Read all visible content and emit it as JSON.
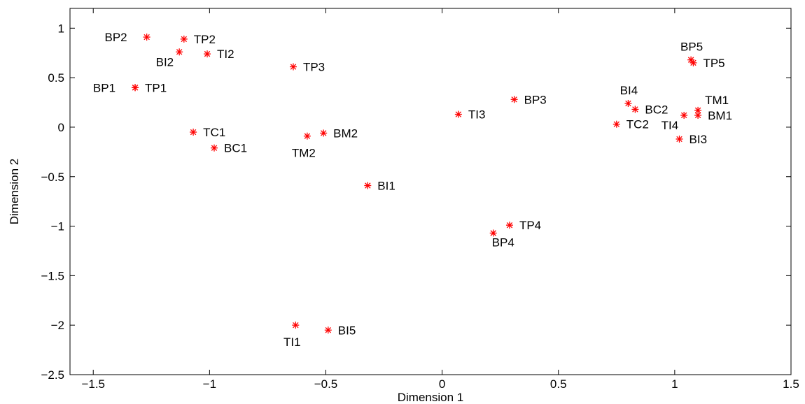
{
  "colors": {
    "marker": "#ff0000",
    "axis": "#000000",
    "background": "#ffffff"
  },
  "chart_data": {
    "type": "scatter",
    "title": "",
    "xlabel": "Dimension 1",
    "ylabel": "Dimension 2",
    "xlim": [
      -1.6,
      1.5
    ],
    "ylim": [
      -2.5,
      1.2
    ],
    "xticks": [
      -1.5,
      -1,
      -0.5,
      0,
      0.5,
      1,
      1.5
    ],
    "xtick_labels": [
      "−1.5",
      "−1",
      "−0.5",
      "0",
      "0.5",
      "1",
      "1.5"
    ],
    "yticks": [
      -2.5,
      -2,
      -1.5,
      -1,
      -0.5,
      0,
      0.5,
      1
    ],
    "ytick_labels": [
      "−2.5",
      "−2",
      "−1.5",
      "−1",
      "−0.5",
      "0",
      "0.5",
      "1"
    ],
    "grid": false,
    "legend": false,
    "marker": "asterisk",
    "points": [
      {
        "label": "BP2",
        "x": -1.27,
        "y": 0.91,
        "label_pos": "left"
      },
      {
        "label": "TP2",
        "x": -1.11,
        "y": 0.89,
        "label_pos": "right"
      },
      {
        "label": "BI2",
        "x": -1.13,
        "y": 0.76,
        "label_pos": "left-below"
      },
      {
        "label": "TI2",
        "x": -1.01,
        "y": 0.74,
        "label_pos": "right"
      },
      {
        "label": "TP3",
        "x": -0.64,
        "y": 0.61,
        "label_pos": "right"
      },
      {
        "label": "BP1",
        "x": -1.32,
        "y": 0.4,
        "label_pos": "left"
      },
      {
        "label": "TP1",
        "x": -1.32,
        "y": 0.4,
        "label_pos": "right"
      },
      {
        "label": "TC1",
        "x": -1.07,
        "y": -0.05,
        "label_pos": "right"
      },
      {
        "label": "BC1",
        "x": -0.98,
        "y": -0.21,
        "label_pos": "right"
      },
      {
        "label": "TM2",
        "x": -0.58,
        "y": -0.09,
        "label_pos": "below"
      },
      {
        "label": "BM2",
        "x": -0.51,
        "y": -0.06,
        "label_pos": "right"
      },
      {
        "label": "BI1",
        "x": -0.32,
        "y": -0.59,
        "label_pos": "right"
      },
      {
        "label": "TI3",
        "x": 0.07,
        "y": 0.13,
        "label_pos": "right"
      },
      {
        "label": "BP3",
        "x": 0.31,
        "y": 0.28,
        "label_pos": "right"
      },
      {
        "label": "TP4",
        "x": 0.29,
        "y": -0.99,
        "label_pos": "right"
      },
      {
        "label": "BP4",
        "x": 0.22,
        "y": -1.07,
        "label_pos": "below-right"
      },
      {
        "label": "TI1",
        "x": -0.63,
        "y": -2.0,
        "label_pos": "below"
      },
      {
        "label": "BI5",
        "x": -0.49,
        "y": -2.05,
        "label_pos": "right"
      },
      {
        "label": "BI4",
        "x": 0.8,
        "y": 0.24,
        "label_pos": "above"
      },
      {
        "label": "BC2",
        "x": 0.83,
        "y": 0.18,
        "label_pos": "right"
      },
      {
        "label": "TC2",
        "x": 0.75,
        "y": 0.03,
        "label_pos": "right"
      },
      {
        "label": "TI4",
        "x": 1.04,
        "y": 0.12,
        "label_pos": "left-below"
      },
      {
        "label": "TM1",
        "x": 1.1,
        "y": 0.17,
        "label_pos": "right-above"
      },
      {
        "label": "BM1",
        "x": 1.1,
        "y": 0.12,
        "label_pos": "right"
      },
      {
        "label": "BI3",
        "x": 1.02,
        "y": -0.12,
        "label_pos": "right"
      },
      {
        "label": "BP5",
        "x": 1.07,
        "y": 0.68,
        "label_pos": "above"
      },
      {
        "label": "TP5",
        "x": 1.08,
        "y": 0.65,
        "label_pos": "right"
      }
    ]
  }
}
